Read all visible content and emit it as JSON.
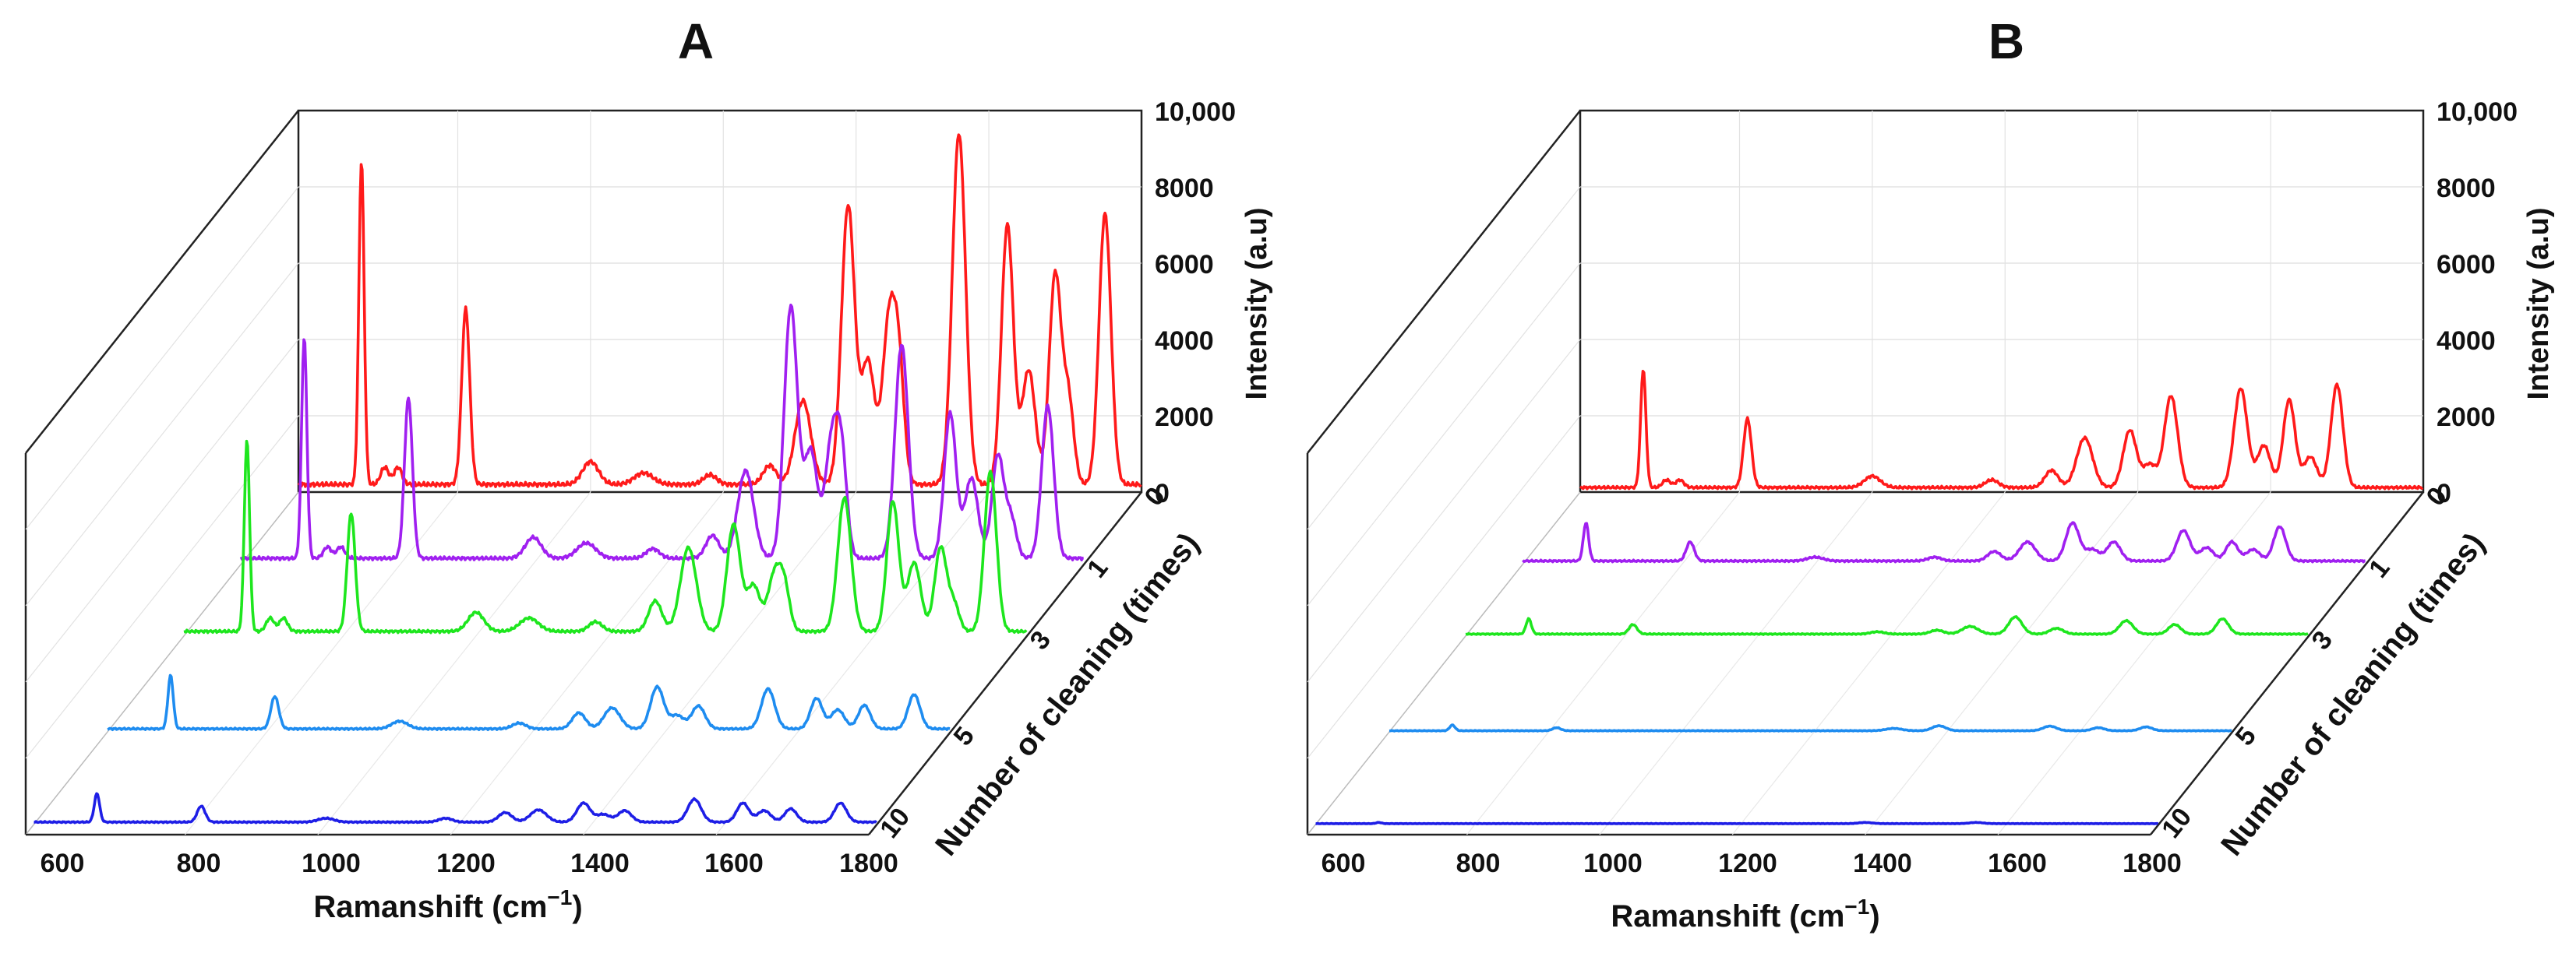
{
  "chart_data": [
    {
      "type": "line",
      "panel": "A",
      "title": "A",
      "xlabel": "Ramanshift (cm",
      "xlabel_sup": "−1",
      "xlabel_end": ")",
      "ylabel": "Intensity (a.u)",
      "zlabel": "Number of cleaning (times)",
      "x_ticks": [
        "600",
        "800",
        "1000",
        "1200",
        "1400",
        "1600",
        "1800"
      ],
      "y_ticks": [
        "0",
        "2000",
        "4000",
        "6000",
        "8000",
        "10,000"
      ],
      "xlim": [
        560,
        1830
      ],
      "ylim": [
        0,
        10000
      ],
      "series": [
        {
          "name": "0",
          "color": "#ff1a1a",
          "baseline": 200,
          "peaks": [
            [
              655,
              8500,
              4
            ],
            [
              690,
              450,
              6
            ],
            [
              710,
              450,
              6
            ],
            [
              812,
              4600,
              6
            ],
            [
              1000,
              600,
              12
            ],
            [
              1080,
              300,
              14
            ],
            [
              1180,
              250,
              10
            ],
            [
              1270,
              500,
              10
            ],
            [
              1320,
              2200,
              12
            ],
            [
              1388,
              7300,
              10
            ],
            [
              1418,
              3200,
              10
            ],
            [
              1450,
              4300,
              10
            ],
            [
              1465,
              2600,
              8
            ],
            [
              1555,
              9200,
              10
            ],
            [
              1628,
              6800,
              9
            ],
            [
              1660,
              3000,
              10
            ],
            [
              1700,
              5500,
              9
            ],
            [
              1720,
              2200,
              8
            ],
            [
              1775,
              7100,
              9
            ]
          ]
        },
        {
          "name": "1",
          "color": "#a020f0",
          "baseline": 150,
          "peaks": [
            [
              655,
              5800,
              4
            ],
            [
              690,
              300,
              6
            ],
            [
              710,
              300,
              6
            ],
            [
              812,
              4200,
              6
            ],
            [
              1000,
              550,
              12
            ],
            [
              1080,
              400,
              14
            ],
            [
              1180,
              250,
              10
            ],
            [
              1270,
              600,
              10
            ],
            [
              1320,
              2300,
              12
            ],
            [
              1388,
              6600,
              10
            ],
            [
              1418,
              2800,
              10
            ],
            [
              1450,
              3100,
              10
            ],
            [
              1465,
              2300,
              8
            ],
            [
              1555,
              5600,
              10
            ],
            [
              1628,
              3800,
              9
            ],
            [
              1660,
              2100,
              10
            ],
            [
              1700,
              2700,
              9
            ],
            [
              1720,
              1000,
              8
            ],
            [
              1775,
              4000,
              9
            ]
          ]
        },
        {
          "name": "3",
          "color": "#1ee61e",
          "baseline": 120,
          "peaks": [
            [
              655,
              5000,
              4
            ],
            [
              690,
              350,
              6
            ],
            [
              710,
              350,
              6
            ],
            [
              812,
              3100,
              6
            ],
            [
              1000,
              500,
              12
            ],
            [
              1080,
              350,
              14
            ],
            [
              1180,
              250,
              10
            ],
            [
              1270,
              800,
              10
            ],
            [
              1320,
              2200,
              12
            ],
            [
              1388,
              2800,
              10
            ],
            [
              1418,
              1200,
              10
            ],
            [
              1450,
              1500,
              10
            ],
            [
              1465,
              1000,
              8
            ],
            [
              1555,
              3500,
              10
            ],
            [
              1628,
              3400,
              9
            ],
            [
              1660,
              1800,
              10
            ],
            [
              1700,
              2200,
              9
            ],
            [
              1720,
              700,
              8
            ],
            [
              1775,
              4200,
              9
            ]
          ]
        },
        {
          "name": "5",
          "color": "#1e8cf0",
          "baseline": 80,
          "peaks": [
            [
              655,
              1400,
              4
            ],
            [
              812,
              850,
              6
            ],
            [
              1000,
              200,
              12
            ],
            [
              1180,
              150,
              10
            ],
            [
              1270,
              420,
              10
            ],
            [
              1320,
              550,
              12
            ],
            [
              1388,
              1100,
              10
            ],
            [
              1418,
              350,
              10
            ],
            [
              1450,
              600,
              10
            ],
            [
              1555,
              1050,
              10
            ],
            [
              1628,
              800,
              9
            ],
            [
              1660,
              500,
              10
            ],
            [
              1700,
              620,
              9
            ],
            [
              1775,
              900,
              9
            ]
          ]
        },
        {
          "name": "10",
          "color": "#1e1ee6",
          "baseline": 60,
          "peaks": [
            [
              655,
              750,
              4
            ],
            [
              812,
              420,
              6
            ],
            [
              1000,
              100,
              12
            ],
            [
              1180,
              100,
              10
            ],
            [
              1270,
              250,
              10
            ],
            [
              1320,
              320,
              12
            ],
            [
              1388,
              500,
              10
            ],
            [
              1418,
              200,
              10
            ],
            [
              1450,
              300,
              10
            ],
            [
              1555,
              600,
              10
            ],
            [
              1628,
              500,
              9
            ],
            [
              1660,
              300,
              10
            ],
            [
              1700,
              350,
              9
            ],
            [
              1775,
              500,
              9
            ]
          ]
        }
      ]
    },
    {
      "type": "line",
      "panel": "B",
      "title": "B",
      "xlabel": "Ramanshift (cm",
      "xlabel_sup": "−1",
      "xlabel_end": ")",
      "ylabel": "Intensity (a.u)",
      "zlabel": "Number of cleaning (times)",
      "x_ticks": [
        "600",
        "800",
        "1000",
        "1200",
        "1400",
        "1600",
        "1800"
      ],
      "y_ticks": [
        "0",
        "2000",
        "4000",
        "6000",
        "8000",
        "10,000"
      ],
      "xlim": [
        560,
        1830
      ],
      "ylim": [
        0,
        10000
      ],
      "series": [
        {
          "name": "0",
          "color": "#ff1a1a",
          "baseline": 120,
          "peaks": [
            [
              655,
              3100,
              4
            ],
            [
              690,
              200,
              6
            ],
            [
              710,
              200,
              6
            ],
            [
              812,
              1800,
              6
            ],
            [
              1000,
              300,
              12
            ],
            [
              1180,
              200,
              10
            ],
            [
              1270,
              450,
              10
            ],
            [
              1320,
              1300,
              12
            ],
            [
              1388,
              1500,
              10
            ],
            [
              1418,
              600,
              10
            ],
            [
              1450,
              2400,
              10
            ],
            [
              1555,
              2600,
              10
            ],
            [
              1590,
              1100,
              10
            ],
            [
              1628,
              2300,
              9
            ],
            [
              1660,
              800,
              10
            ],
            [
              1700,
              2700,
              9
            ]
          ]
        },
        {
          "name": "1",
          "color": "#a020f0",
          "baseline": 80,
          "peaks": [
            [
              655,
              1000,
              4
            ],
            [
              812,
              500,
              6
            ],
            [
              1000,
              100,
              12
            ],
            [
              1180,
              100,
              10
            ],
            [
              1270,
              250,
              10
            ],
            [
              1320,
              500,
              12
            ],
            [
              1388,
              1000,
              10
            ],
            [
              1418,
              300,
              10
            ],
            [
              1450,
              500,
              10
            ],
            [
              1555,
              800,
              10
            ],
            [
              1590,
              350,
              10
            ],
            [
              1628,
              500,
              9
            ],
            [
              1660,
              300,
              10
            ],
            [
              1700,
              900,
              9
            ]
          ]
        },
        {
          "name": "3",
          "color": "#1ee61e",
          "baseline": 50,
          "peaks": [
            [
              655,
              400,
              4
            ],
            [
              812,
              250,
              6
            ],
            [
              1180,
              60,
              10
            ],
            [
              1270,
              100,
              10
            ],
            [
              1320,
              200,
              12
            ],
            [
              1388,
              450,
              10
            ],
            [
              1450,
              150,
              10
            ],
            [
              1555,
              350,
              10
            ],
            [
              1628,
              250,
              9
            ],
            [
              1700,
              400,
              9
            ]
          ]
        },
        {
          "name": "5",
          "color": "#1e8cf0",
          "baseline": 30,
          "peaks": [
            [
              655,
              150,
              4
            ],
            [
              812,
              80,
              6
            ],
            [
              1320,
              60,
              12
            ],
            [
              1388,
              130,
              10
            ],
            [
              1555,
              120,
              10
            ],
            [
              1628,
              80,
              9
            ],
            [
              1700,
              100,
              9
            ]
          ]
        },
        {
          "name": "10",
          "color": "#1e1ee6",
          "baseline": 20,
          "peaks": [
            [
              655,
              30,
              4
            ],
            [
              1388,
              30,
              10
            ],
            [
              1555,
              30,
              10
            ]
          ]
        }
      ]
    }
  ]
}
